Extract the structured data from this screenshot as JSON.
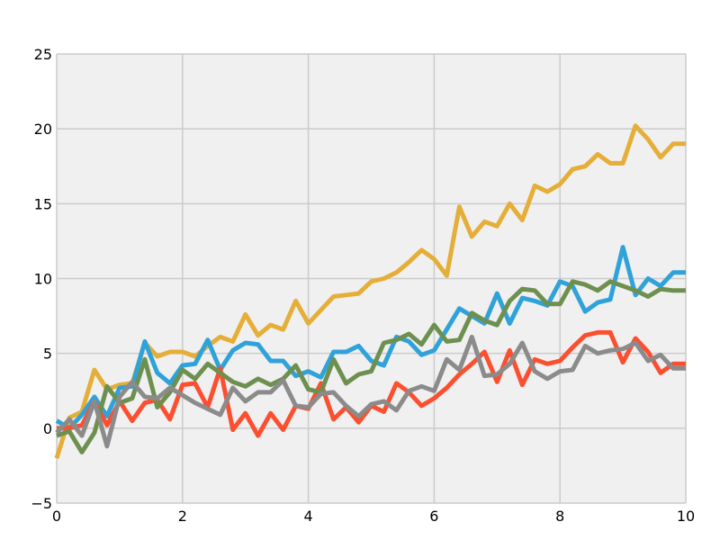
{
  "chart_data": {
    "type": "line",
    "title": "",
    "xlabel": "",
    "ylabel": "",
    "xlim": [
      0,
      10
    ],
    "ylim": [
      -5,
      25
    ],
    "x_ticks": [
      0,
      2,
      4,
      6,
      8,
      10
    ],
    "y_ticks": [
      -5,
      0,
      5,
      10,
      15,
      20,
      25
    ],
    "x_tick_labels": [
      "0",
      "2",
      "4",
      "6",
      "8",
      "10"
    ],
    "y_tick_labels": [
      "−5",
      "0",
      "5",
      "10",
      "15",
      "20",
      "25"
    ],
    "grid": true,
    "legend": "none",
    "x": [
      0.0,
      0.2,
      0.4,
      0.6,
      0.8,
      1.0,
      1.2,
      1.4,
      1.6,
      1.8,
      2.0,
      2.2,
      2.4,
      2.6,
      2.8,
      3.0,
      3.2,
      3.4,
      3.6,
      3.8,
      4.0,
      4.2,
      4.4,
      4.6,
      4.8,
      5.0,
      5.2,
      5.4,
      5.6,
      5.8,
      6.0,
      6.2,
      6.4,
      6.6,
      6.8,
      7.0,
      7.2,
      7.4,
      7.6,
      7.8,
      8.0,
      8.2,
      8.4,
      8.6,
      8.8,
      9.0,
      9.2,
      9.4,
      9.6,
      9.8,
      10.0
    ],
    "series": [
      {
        "color": "#e5ae38",
        "values": [
          -2.0,
          0.7,
          1.1,
          3.9,
          2.6,
          2.9,
          3.0,
          5.7,
          4.8,
          5.1,
          5.1,
          4.8,
          5.5,
          6.1,
          5.8,
          7.6,
          6.2,
          6.9,
          6.6,
          8.5,
          7.0,
          7.9,
          8.8,
          8.9,
          9.0,
          9.8,
          10.0,
          10.4,
          11.1,
          11.9,
          11.3,
          10.2,
          14.8,
          12.8,
          13.8,
          13.5,
          15.0,
          13.9,
          16.2,
          15.8,
          16.3,
          17.3,
          17.5,
          18.3,
          17.7,
          17.7,
          20.2,
          19.3,
          18.1,
          19.0,
          19.0
        ]
      },
      {
        "color": "#30a2da",
        "values": [
          0.5,
          0.0,
          0.9,
          2.1,
          0.8,
          2.7,
          2.8,
          5.8,
          3.7,
          3.0,
          4.2,
          4.3,
          5.9,
          3.9,
          5.2,
          5.7,
          5.6,
          4.5,
          4.5,
          3.5,
          3.8,
          3.4,
          5.1,
          5.1,
          5.5,
          4.5,
          4.2,
          6.1,
          5.8,
          4.9,
          5.2,
          6.6,
          8.0,
          7.5,
          7.0,
          9.0,
          7.0,
          8.7,
          8.5,
          8.2,
          9.8,
          9.5,
          7.8,
          8.4,
          8.6,
          12.1,
          8.9,
          10.0,
          9.5,
          10.4,
          10.4
        ]
      },
      {
        "color": "#fc4f30",
        "values": [
          0.0,
          0.0,
          0.2,
          1.8,
          0.2,
          1.8,
          0.5,
          1.7,
          1.9,
          0.6,
          2.9,
          3.0,
          1.4,
          4.0,
          -0.1,
          1.0,
          -0.5,
          1.0,
          -0.1,
          1.5,
          1.3,
          3.0,
          0.6,
          1.4,
          0.4,
          1.5,
          1.1,
          3.0,
          2.4,
          1.5,
          2.0,
          2.7,
          3.6,
          4.3,
          5.1,
          3.1,
          5.2,
          2.9,
          4.6,
          4.3,
          4.5,
          5.4,
          6.2,
          6.4,
          6.4,
          4.4,
          6.0,
          5.1,
          3.7,
          4.3,
          4.3
        ]
      },
      {
        "color": "#6d904f",
        "values": [
          -0.5,
          -0.2,
          -1.6,
          -0.3,
          2.8,
          1.7,
          2.0,
          4.6,
          1.4,
          2.4,
          3.9,
          3.3,
          4.3,
          3.7,
          3.1,
          2.8,
          3.3,
          2.9,
          3.3,
          4.2,
          2.6,
          2.4,
          4.6,
          3.0,
          3.6,
          3.8,
          5.7,
          5.9,
          6.3,
          5.6,
          6.9,
          5.8,
          5.9,
          7.7,
          7.2,
          6.9,
          8.5,
          9.3,
          9.2,
          8.3,
          8.3,
          9.8,
          9.6,
          9.2,
          9.8,
          9.5,
          9.2,
          8.8,
          9.3,
          9.2,
          9.2
        ]
      },
      {
        "color": "#8b8b8b",
        "values": [
          -0.3,
          0.6,
          -0.5,
          1.8,
          -1.2,
          2.1,
          3.1,
          2.1,
          2.0,
          2.7,
          2.2,
          1.7,
          1.3,
          0.9,
          2.7,
          1.8,
          2.4,
          2.4,
          3.2,
          1.5,
          1.4,
          2.3,
          2.4,
          1.5,
          0.8,
          1.6,
          1.8,
          1.2,
          2.5,
          2.8,
          2.5,
          4.6,
          3.9,
          6.1,
          3.5,
          3.6,
          4.3,
          5.7,
          3.8,
          3.3,
          3.8,
          3.9,
          5.5,
          5.0,
          5.2,
          5.3,
          5.7,
          4.5,
          4.9,
          4.0,
          4.0
        ]
      }
    ]
  }
}
